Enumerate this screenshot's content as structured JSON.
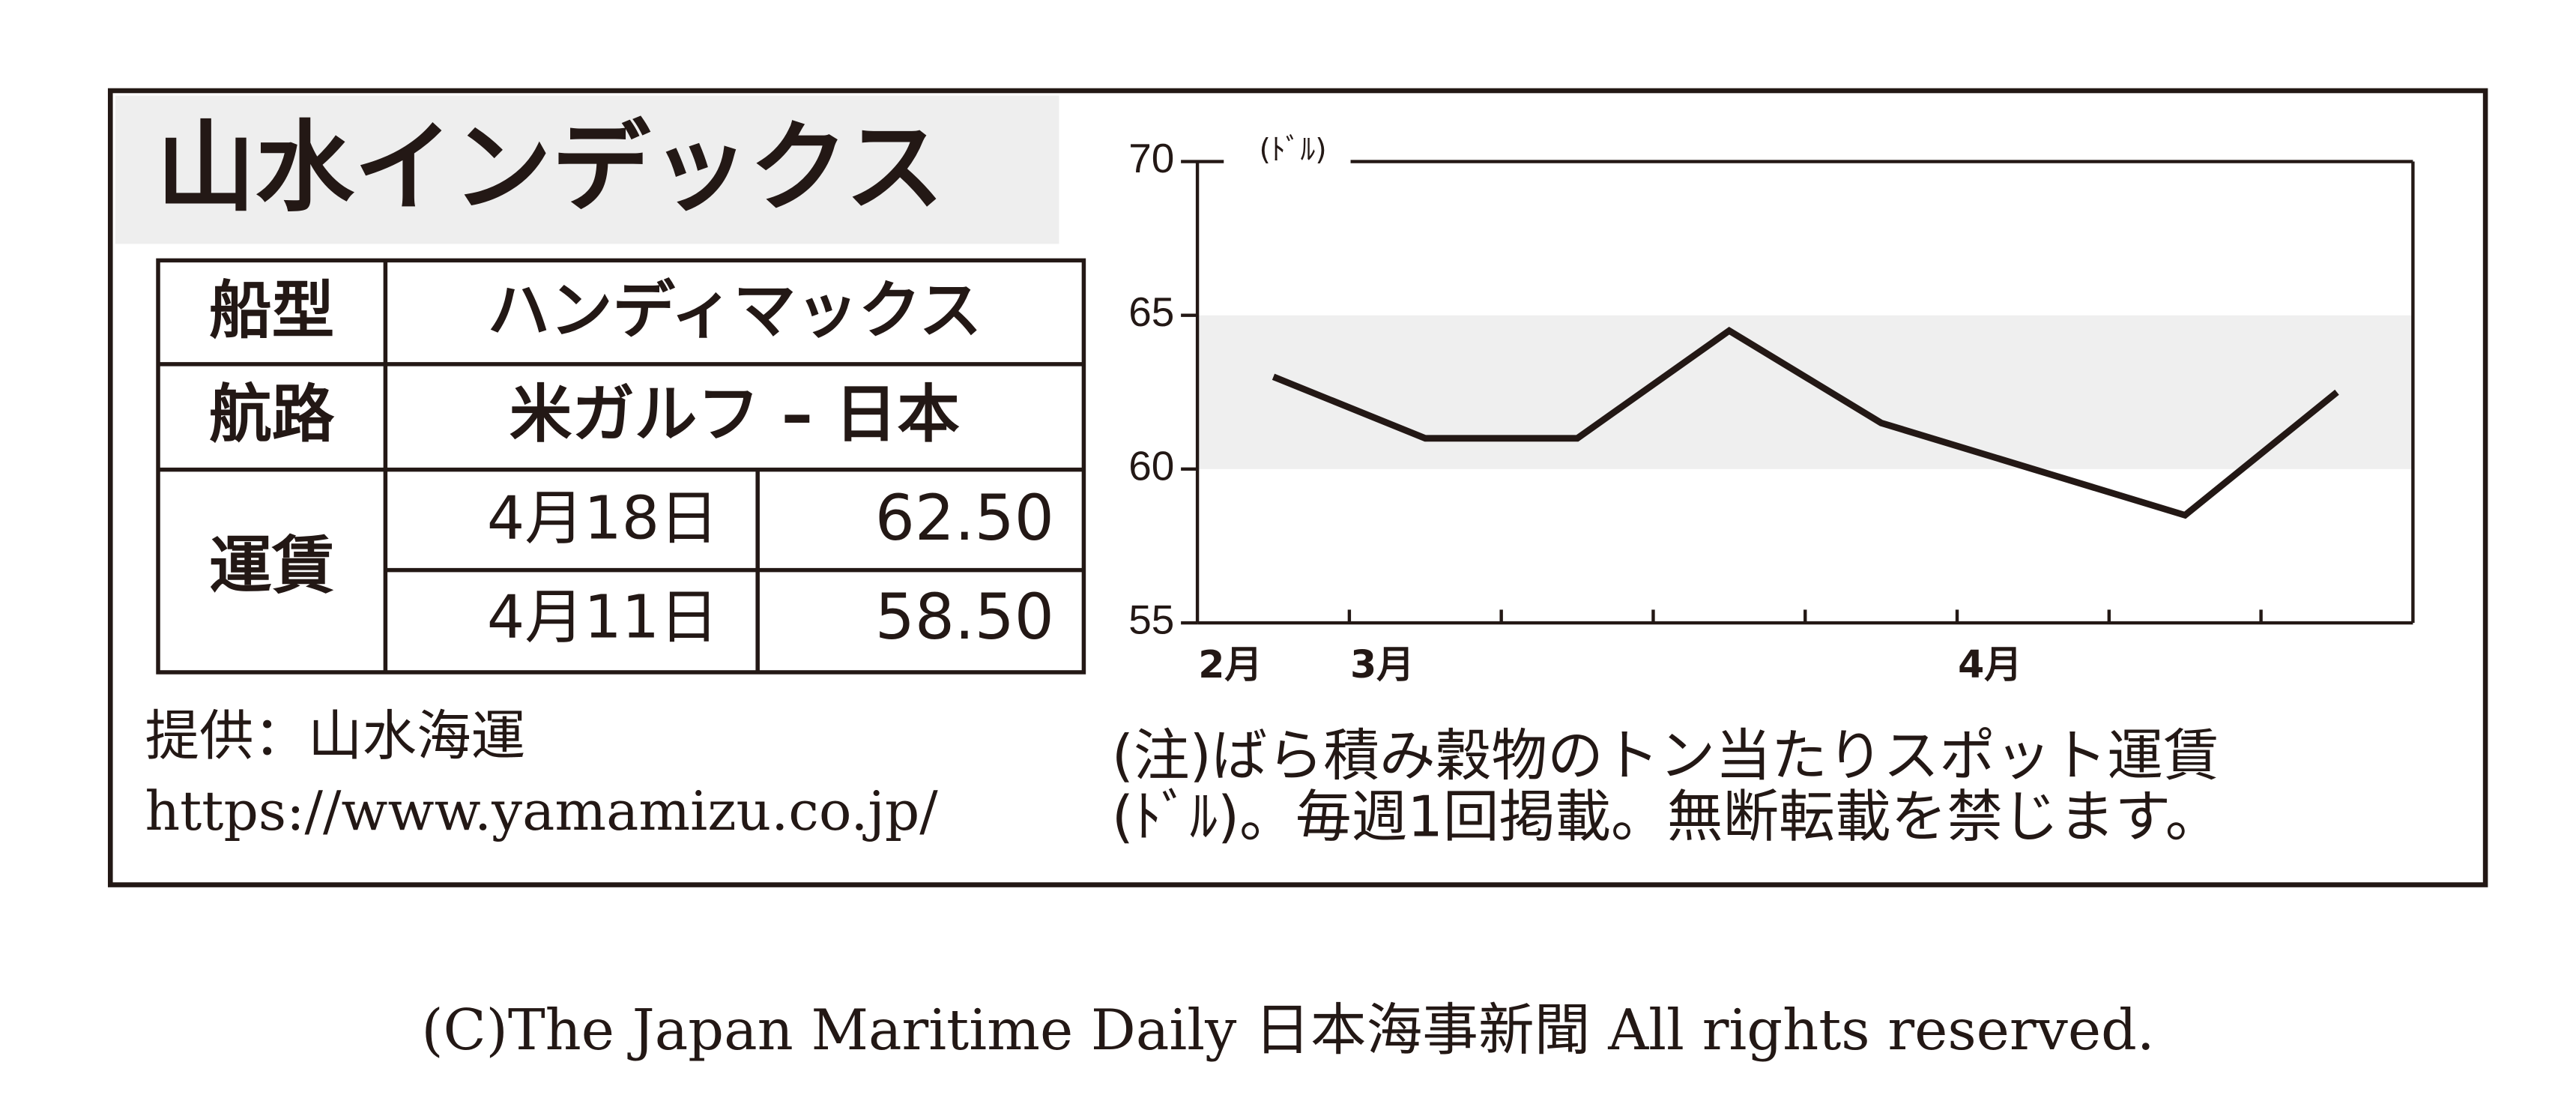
{
  "header": {
    "title": "山水インデックス"
  },
  "table": {
    "rows": [
      {
        "label": "船型",
        "value": "ハンディマックス"
      },
      {
        "label": "航路",
        "value": "米ガルフ – 日本"
      }
    ],
    "rate": {
      "label": "運賃",
      "entries": [
        {
          "date": "4月18日",
          "value": "62.50"
        },
        {
          "date": "4月11日",
          "value": "58.50"
        }
      ]
    }
  },
  "source": {
    "label": "提供：山水海運",
    "url": "https://www.yamamizu.co.jp/"
  },
  "notes": [
    "(注)ばら積み穀物のトン当たりスポット運賃",
    "(ﾄﾞﾙ)。毎週1回掲載。無断転載を禁じます。"
  ],
  "copyright": "(C)The Japan Maritime Daily 日本海事新聞 All rights reserved.",
  "chart_data": {
    "type": "line",
    "y_label": "(ﾄﾞﾙ)",
    "x_boundary_labels": [
      "2月",
      "3月",
      null,
      null,
      null,
      "4月",
      null,
      null,
      null
    ],
    "values": [
      63,
      61,
      61,
      64.5,
      61.5,
      60,
      58.5,
      62.5
    ],
    "color": "#231815",
    "ylim": [
      55,
      70
    ],
    "yticks": [
      55,
      60,
      65,
      70
    ],
    "shaded_range": [
      60,
      65
    ],
    "shade_color": "#efefef"
  }
}
